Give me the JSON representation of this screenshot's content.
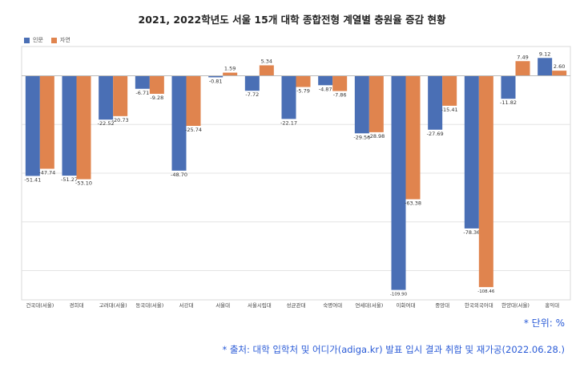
{
  "chart_data": {
    "type": "bar",
    "title": "2021, 2022학년도 서울 15개 대학 종합전형 계열별 충원율 증감 현황",
    "categories": [
      "건국대(서울)",
      "경희대",
      "고려대(서울)",
      "동국대(서울)",
      "서강대",
      "서울대",
      "서울시립대",
      "성균관대",
      "숙명여대",
      "연세대(서울)",
      "이화여대",
      "중앙대",
      "한국외국어대",
      "한양대(서울)",
      "홍익대"
    ],
    "series": [
      {
        "name": "인문",
        "color": "#4a6fb5",
        "values": [
          -51.41,
          -51.27,
          -22.52,
          -6.71,
          -48.7,
          -0.81,
          -7.72,
          -22.17,
          -4.87,
          -29.56,
          -109.9,
          -27.69,
          -78.36,
          -11.82,
          9.12
        ]
      },
      {
        "name": "자연",
        "color": "#e0844e",
        "values": [
          -47.74,
          -53.1,
          -20.73,
          -9.28,
          -25.74,
          1.59,
          5.34,
          -5.79,
          -7.86,
          -28.98,
          -63.38,
          -15.41,
          -108.46,
          7.49,
          2.6
        ]
      }
    ],
    "ylim": [
      -115,
      15
    ],
    "grid": true,
    "legend": "top-left"
  },
  "notes": {
    "unit": "* 단위: %",
    "source": "* 출처: 대학 입학처 및 어디가(adiga.kr) 발표 입시 결과 취합 및 재가공(2022.06.28.)"
  }
}
